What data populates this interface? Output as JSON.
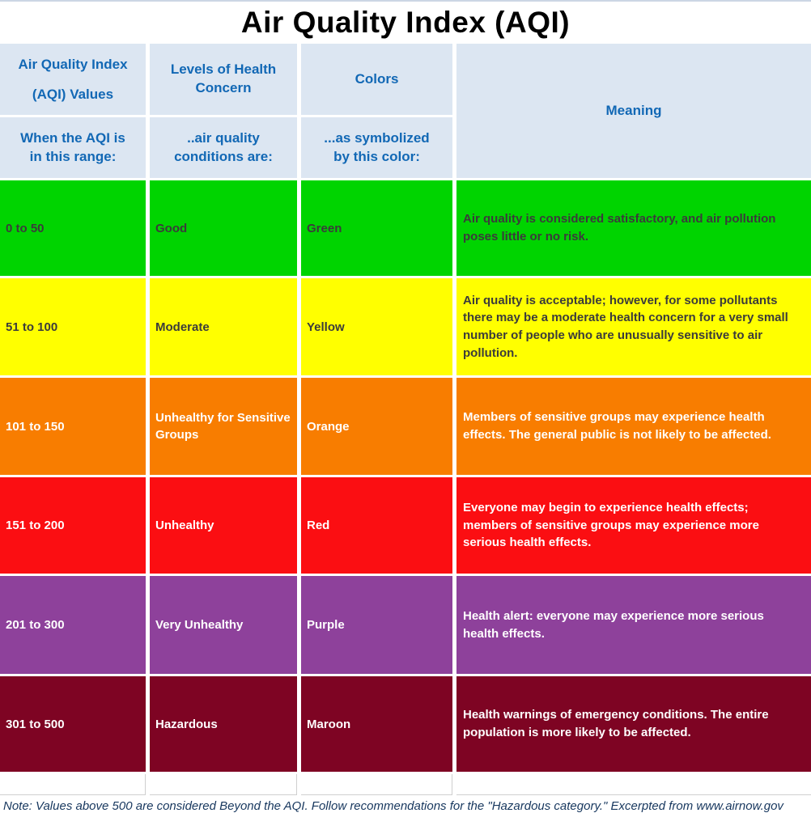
{
  "title": "Air Quality Index (AQI)",
  "colors": {
    "green": "#00d400",
    "yellow": "#ffff00",
    "orange": "#f87d00",
    "red": "#fb0e12",
    "purple": "#8e419b",
    "maroon": "#7e0423",
    "header_bg": "#dce6f2",
    "header_text": "#1268b5",
    "dark_row_text": "#3b3b3b",
    "light_row_text": "#ffffff",
    "note_text": "#17375e"
  },
  "table": {
    "header": {
      "aqi_values": "Air Quality Index\n(AQI) Values",
      "health_concern": "Levels of Health\nConcern",
      "colors": "Colors",
      "meaning": "Meaning",
      "range_sub": "When the AQI is\nin this range:",
      "conditions_sub": "..air quality\nconditions are:",
      "color_sub": "...as symbolized\nby this color:"
    },
    "rows": [
      {
        "range": "0 to 50",
        "level": "Good",
        "color_name": "Green",
        "color_key": "green",
        "meaning": "Air quality is considered satisfactory, and air pollution poses little or no risk."
      },
      {
        "range": "51 to 100",
        "level": "Moderate",
        "color_name": "Yellow",
        "color_key": "yellow",
        "meaning": "Air quality is acceptable; however, for some pollutants there may be a moderate health concern for a very small number of people who are unusually sensitive to air pollution."
      },
      {
        "range": "101 to 150",
        "level": "Unhealthy for Sensitive Groups",
        "color_name": "Orange",
        "color_key": "orange",
        "meaning": "Members of sensitive groups may experience health effects. The general public is not likely to be affected."
      },
      {
        "range": "151 to 200",
        "level": "Unhealthy",
        "color_name": "Red",
        "color_key": "red",
        "meaning": "Everyone may begin to experience health effects; members of sensitive groups may experience more serious health effects."
      },
      {
        "range": "201 to 300",
        "level": "Very Unhealthy",
        "color_name": "Purple",
        "color_key": "purple",
        "meaning": "Health alert: everyone may experience more serious health effects."
      },
      {
        "range": "301 to 500",
        "level": "Hazardous",
        "color_name": "Maroon",
        "color_key": "maroon",
        "meaning": "Health warnings of emergency conditions. The entire population is more likely to be affected."
      }
    ]
  },
  "note": "Note: Values above 500 are considered Beyond the AQI. Follow recommendations for the \"Hazardous category.\"  Excerpted from www.airnow.gov"
}
